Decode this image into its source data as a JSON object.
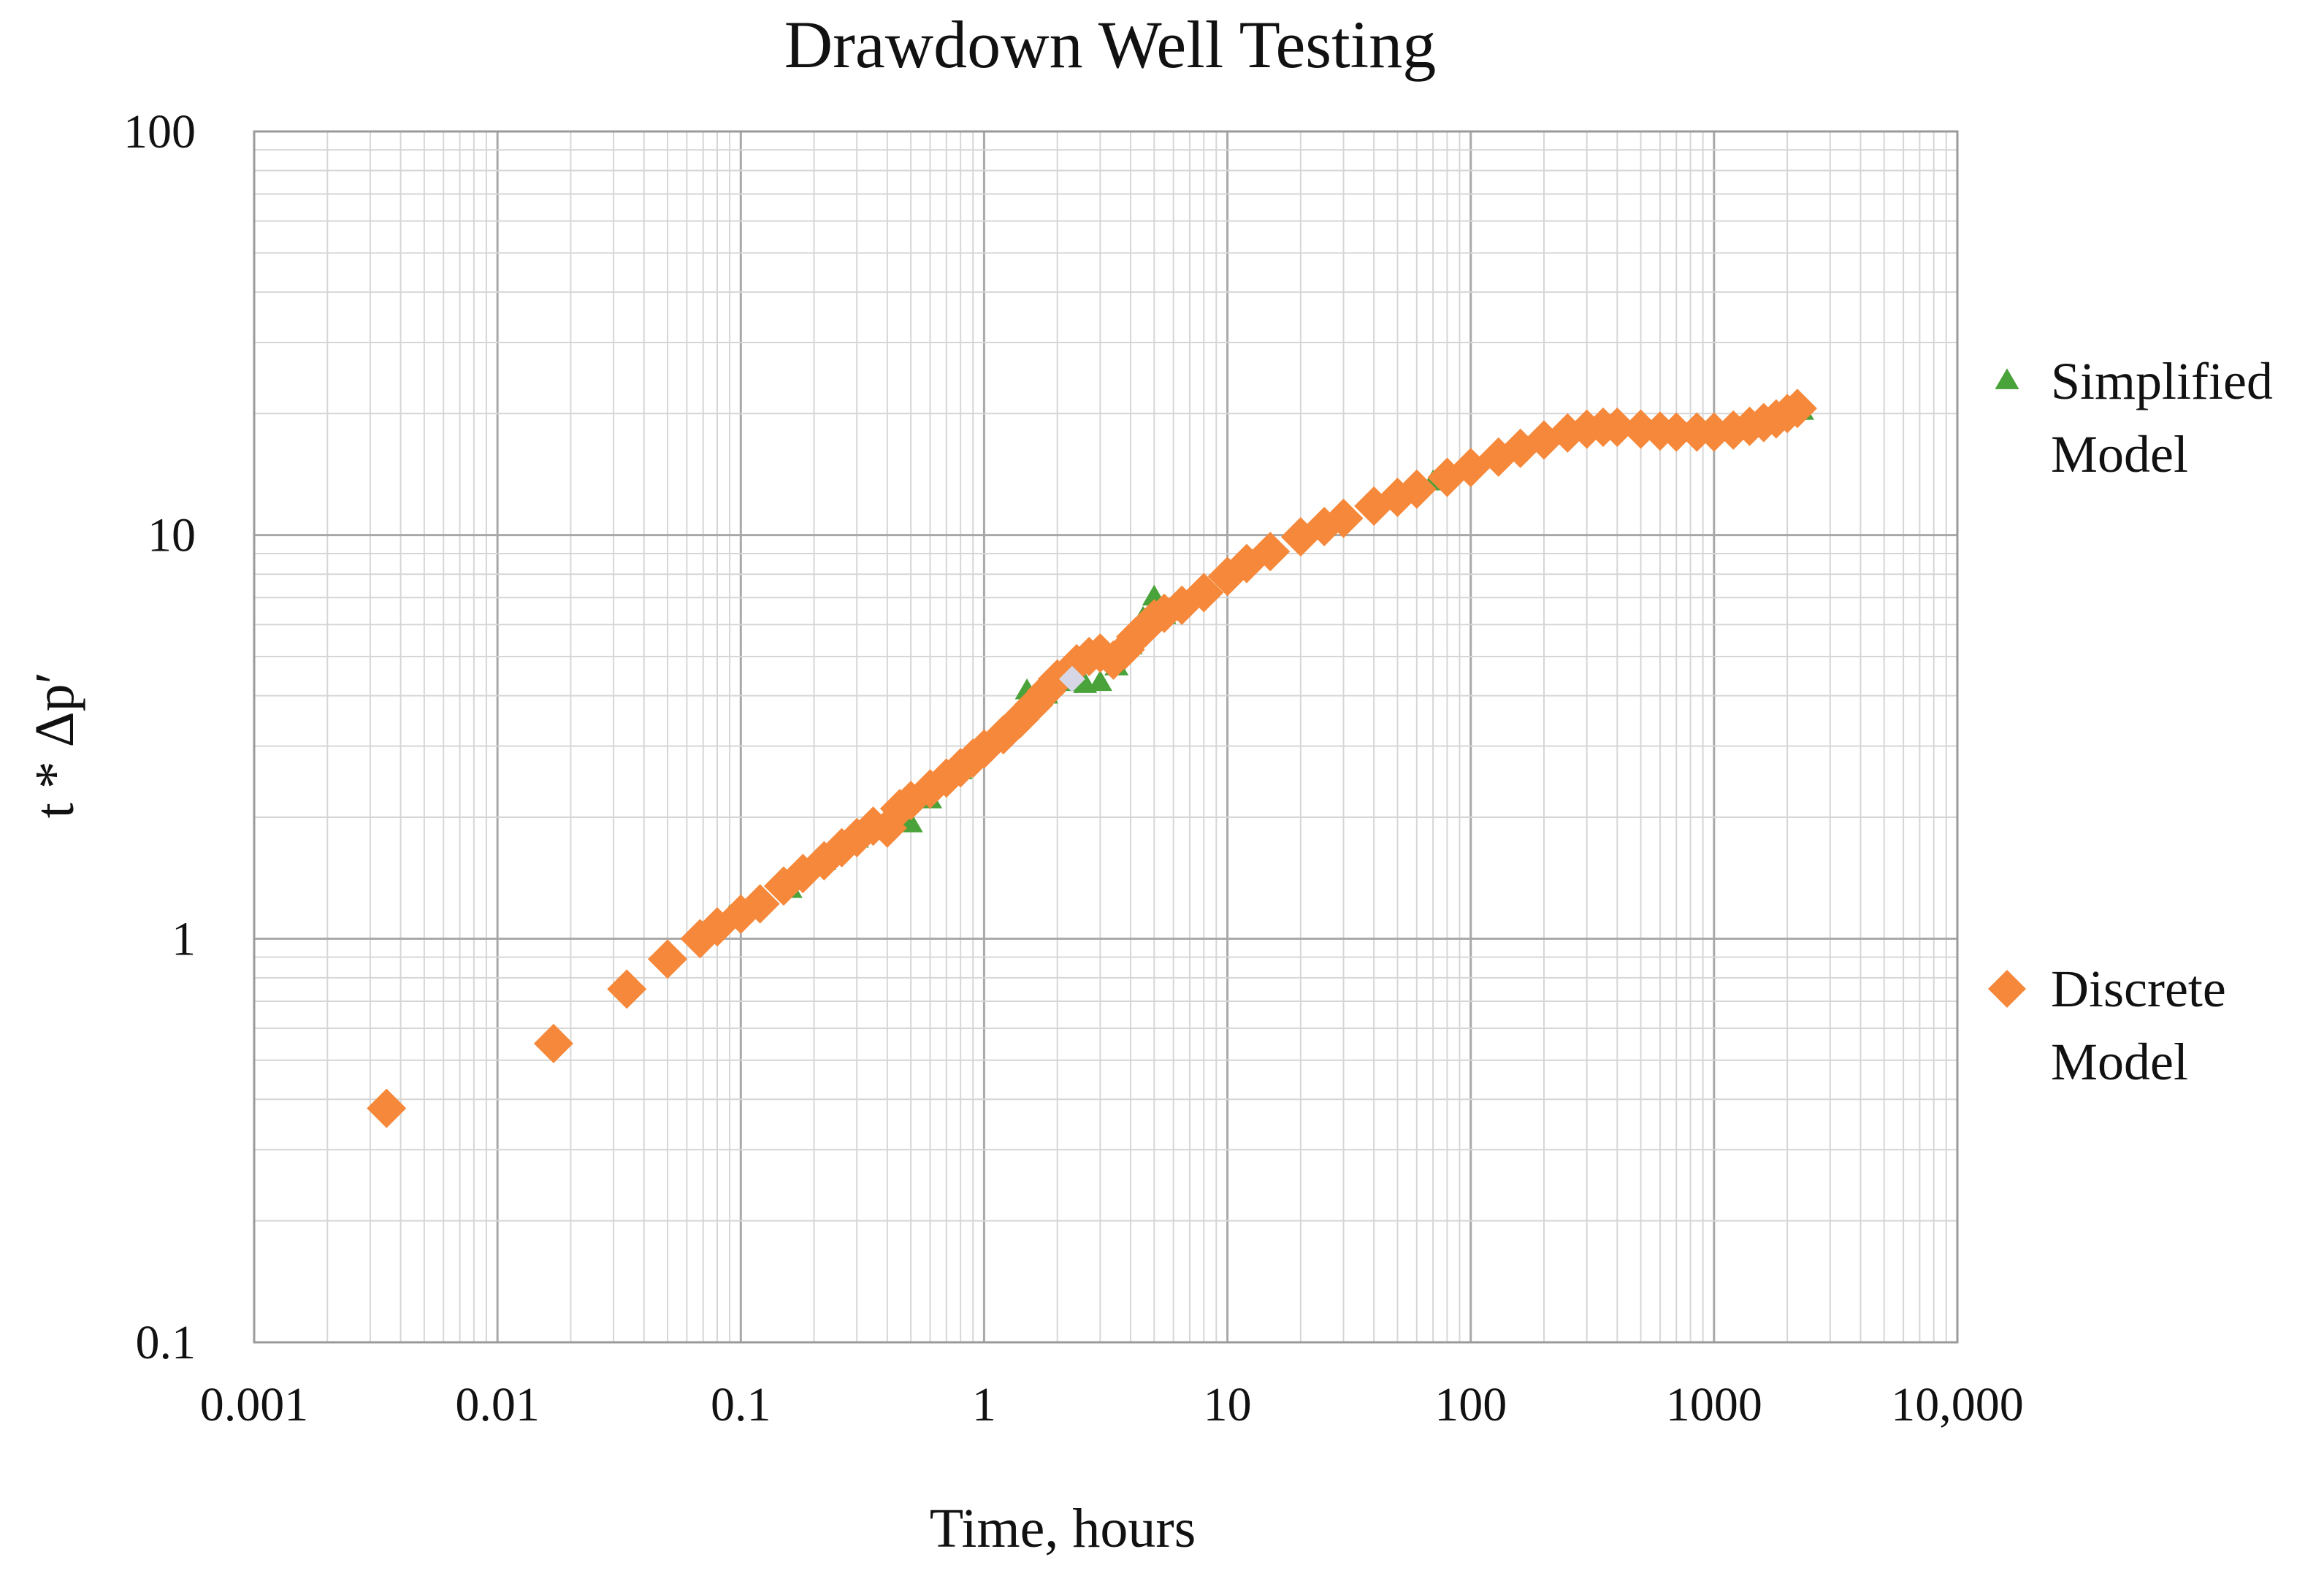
{
  "chart_data": {
    "type": "scatter",
    "title": "Drawdown Well Testing",
    "xlabel": "Time, hours",
    "ylabel": "t * Δp′",
    "x_scale": "log",
    "y_scale": "log",
    "xlim": [
      0.001,
      10000
    ],
    "ylim": [
      0.1,
      100
    ],
    "x_ticks": [
      {
        "value": 0.001,
        "label": "0.001"
      },
      {
        "value": 0.01,
        "label": "0.01"
      },
      {
        "value": 0.1,
        "label": "0.1"
      },
      {
        "value": 1,
        "label": "1"
      },
      {
        "value": 10,
        "label": "10"
      },
      {
        "value": 100,
        "label": "100"
      },
      {
        "value": 1000,
        "label": "1000"
      },
      {
        "value": 10000,
        "label": "10,000"
      }
    ],
    "y_ticks": [
      {
        "value": 0.1,
        "label": "0.1"
      },
      {
        "value": 1,
        "label": "1"
      },
      {
        "value": 10,
        "label": "10"
      },
      {
        "value": 100,
        "label": "100"
      }
    ],
    "grid": true,
    "legend_position": "right",
    "series": [
      {
        "name": "Simplified Model",
        "marker": "triangle",
        "color": "#4aa23a",
        "points": [
          [
            0.0035,
            0.38
          ],
          [
            0.017,
            0.55
          ],
          [
            0.034,
            0.75
          ],
          [
            0.05,
            0.89
          ],
          [
            0.068,
            1.0
          ],
          [
            0.09,
            1.13
          ],
          [
            0.12,
            1.22
          ],
          [
            0.16,
            1.32
          ],
          [
            0.22,
            1.55
          ],
          [
            0.3,
            1.76
          ],
          [
            0.4,
            1.95
          ],
          [
            0.5,
            1.92
          ],
          [
            0.6,
            2.2
          ],
          [
            0.8,
            2.6
          ],
          [
            1.0,
            2.95
          ],
          [
            1.2,
            3.3
          ],
          [
            1.5,
            4.1
          ],
          [
            1.8,
            4.0
          ],
          [
            2.2,
            4.3
          ],
          [
            2.6,
            4.25
          ],
          [
            3.0,
            4.3
          ],
          [
            3.5,
            4.7
          ],
          [
            4.0,
            5.3
          ],
          [
            4.5,
            6.2
          ],
          [
            5.0,
            7.0
          ],
          [
            5.5,
            6.3
          ],
          [
            6.0,
            6.5
          ],
          [
            8.0,
            7.4
          ],
          [
            10,
            8.0
          ],
          [
            15,
            9.2
          ],
          [
            20,
            10.0
          ],
          [
            30,
            11.0
          ],
          [
            50,
            12.5
          ],
          [
            70,
            13.5
          ],
          [
            100,
            14.8
          ],
          [
            150,
            16.2
          ],
          [
            200,
            17.3
          ],
          [
            300,
            18.3
          ],
          [
            400,
            18.5
          ],
          [
            500,
            18.3
          ],
          [
            700,
            18.0
          ],
          [
            1000,
            18.0
          ],
          [
            1300,
            18.2
          ],
          [
            1600,
            18.8
          ],
          [
            2000,
            19.6
          ],
          [
            2300,
            20.2
          ]
        ]
      },
      {
        "name": "Discrete Model",
        "marker": "diamond",
        "color": "#f5883a",
        "points": [
          [
            0.0035,
            0.38
          ],
          [
            0.017,
            0.55
          ],
          [
            0.034,
            0.75
          ],
          [
            0.05,
            0.89
          ],
          [
            0.068,
            1.0
          ],
          [
            0.08,
            1.07
          ],
          [
            0.1,
            1.15
          ],
          [
            0.12,
            1.22
          ],
          [
            0.15,
            1.35
          ],
          [
            0.18,
            1.45
          ],
          [
            0.22,
            1.56
          ],
          [
            0.26,
            1.68
          ],
          [
            0.3,
            1.78
          ],
          [
            0.35,
            1.9
          ],
          [
            0.4,
            1.88
          ],
          [
            0.45,
            2.1
          ],
          [
            0.5,
            2.2
          ],
          [
            0.6,
            2.35
          ],
          [
            0.7,
            2.5
          ],
          [
            0.8,
            2.65
          ],
          [
            0.9,
            2.8
          ],
          [
            1.0,
            2.95
          ],
          [
            1.2,
            3.2
          ],
          [
            1.4,
            3.5
          ],
          [
            1.6,
            3.8
          ],
          [
            1.8,
            4.1
          ],
          [
            2.0,
            4.4
          ],
          [
            2.4,
            4.8
          ],
          [
            2.7,
            5.0
          ],
          [
            3.0,
            5.1
          ],
          [
            3.4,
            4.9
          ],
          [
            3.8,
            5.2
          ],
          [
            4.2,
            5.6
          ],
          [
            4.6,
            5.9
          ],
          [
            5.0,
            6.2
          ],
          [
            5.5,
            6.4
          ],
          [
            6.5,
            6.7
          ],
          [
            8,
            7.2
          ],
          [
            10,
            7.9
          ],
          [
            12,
            8.5
          ],
          [
            15,
            9.1
          ],
          [
            20,
            9.9
          ],
          [
            25,
            10.5
          ],
          [
            30,
            11.0
          ],
          [
            40,
            11.8
          ],
          [
            50,
            12.4
          ],
          [
            60,
            13.0
          ],
          [
            80,
            13.9
          ],
          [
            100,
            14.7
          ],
          [
            130,
            15.6
          ],
          [
            160,
            16.4
          ],
          [
            200,
            17.2
          ],
          [
            250,
            17.9
          ],
          [
            300,
            18.3
          ],
          [
            350,
            18.5
          ],
          [
            400,
            18.5
          ],
          [
            500,
            18.3
          ],
          [
            600,
            18.1
          ],
          [
            700,
            18.0
          ],
          [
            850,
            18.0
          ],
          [
            1000,
            18.0
          ],
          [
            1200,
            18.2
          ],
          [
            1400,
            18.6
          ],
          [
            1600,
            19.0
          ],
          [
            1800,
            19.4
          ],
          [
            2000,
            20.0
          ],
          [
            2200,
            20.6
          ]
        ]
      }
    ],
    "annotations": [
      {
        "label": "",
        "x": 2.3,
        "y": 4.4,
        "marker": "diamond",
        "color": "#d6d6e6"
      }
    ]
  }
}
